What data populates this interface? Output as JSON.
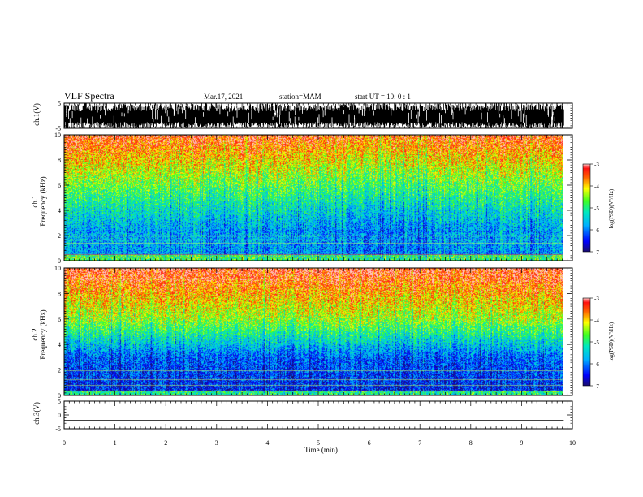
{
  "header": {
    "title": "VLF Spectra",
    "date": "Mar.17, 2021",
    "station": "station=MAM",
    "start": "start UT =  10: 0  : 1"
  },
  "chart_data": [
    {
      "type": "line",
      "name": "ch1-waveform",
      "ylabel": "ch.1(V)",
      "ylim": [
        -5,
        5
      ],
      "yticks": [
        5,
        -5
      ],
      "xlim": [
        0,
        10
      ],
      "description_style": "dense high-amplitude impulsive waveform"
    },
    {
      "type": "heatmap",
      "name": "ch1-spectrogram",
      "ylabel": "ch.1\nFrequency (kHz)",
      "ylabel_line1": "ch.1",
      "ylabel_line2": "Frequency (kHz)",
      "ylim": [
        0,
        10
      ],
      "yticks": [
        0,
        2,
        4,
        6,
        8,
        10
      ],
      "xlim": [
        0,
        9.83
      ],
      "colorbar": {
        "label": "log(PSD)(V²/Hz)",
        "range": [
          -7,
          -3
        ],
        "ticks": [
          -3,
          -4,
          -5,
          -6,
          -7
        ]
      },
      "lines_khz": [
        0.3,
        0.5,
        1.4,
        1.65,
        2.0
      ]
    },
    {
      "type": "heatmap",
      "name": "ch2-spectrogram",
      "ylabel_line1": "ch.2",
      "ylabel_line2": "Frequency (kHz)",
      "ylim": [
        0,
        10
      ],
      "yticks": [
        0,
        2,
        4,
        6,
        8,
        10
      ],
      "xlim": [
        0,
        9.83
      ],
      "colorbar": {
        "label": "log(PSD)(V²/Hz)",
        "range": [
          -7,
          -3
        ],
        "ticks": [
          -3,
          -4,
          -5,
          -6,
          -7
        ]
      },
      "lines_khz": [
        0.4,
        0.8,
        1.3,
        2.0
      ],
      "transmitter_line": {
        "freq_khz": 9.2,
        "t_start_min": 0.35,
        "t_end_min": 4.6
      }
    },
    {
      "type": "line",
      "name": "ch3-waveform",
      "ylabel": "ch.3(V)",
      "ylim": [
        -5,
        5
      ],
      "yticks": [
        5,
        0,
        -5
      ],
      "xlim": [
        0,
        10
      ],
      "x": [
        0,
        9.83
      ],
      "y": [
        -2,
        -2
      ]
    }
  ],
  "xaxis": {
    "label": "Time (min)",
    "ticks": [
      0,
      1,
      2,
      3,
      4,
      5,
      6,
      7,
      8,
      9,
      10
    ],
    "range": [
      0,
      10
    ]
  }
}
